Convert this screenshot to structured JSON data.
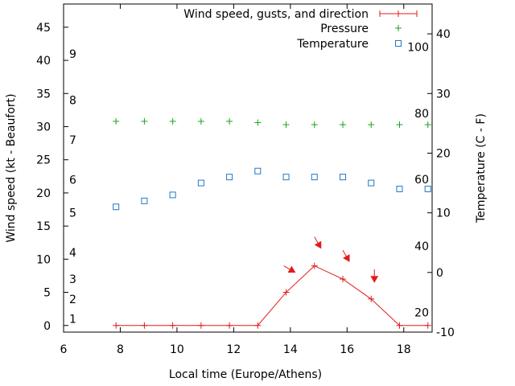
{
  "chart_data": {
    "type": "line",
    "xlabel": "Local time (Europe/Athens)",
    "ylabel_left": "Wind speed (kt - Beaufort)",
    "ylabel_right": "Temperature (C - F)",
    "xlim": [
      6,
      19
    ],
    "ylim_left": [
      -1,
      48.5
    ],
    "ylim_right": [
      -10,
      45
    ],
    "x_ticks": [
      "6",
      "8",
      "10",
      "12",
      "14",
      "16",
      "18"
    ],
    "y_ticks_left": [
      "0",
      "5",
      "10",
      "15",
      "20",
      "25",
      "30",
      "35",
      "40",
      "45"
    ],
    "y_ticks_right": [
      "-10",
      "0",
      "10",
      "20",
      "30",
      "40"
    ],
    "beaufort_labels": [
      {
        "label": "1",
        "kt": 1
      },
      {
        "label": "2",
        "kt": 4
      },
      {
        "label": "3",
        "kt": 7
      },
      {
        "label": "4",
        "kt": 11
      },
      {
        "label": "5",
        "kt": 17
      },
      {
        "label": "6",
        "kt": 22
      },
      {
        "label": "7",
        "kt": 28
      },
      {
        "label": "8",
        "kt": 34
      },
      {
        "label": "9",
        "kt": 41
      }
    ],
    "fahrenheit_labels": [
      {
        "label": "20",
        "c": -6.7
      },
      {
        "label": "40",
        "c": 4.4
      },
      {
        "label": "60",
        "c": 15.6
      },
      {
        "label": "80",
        "c": 26.7
      },
      {
        "label": "100",
        "c": 37.8
      }
    ],
    "legend": [
      "Wind speed, gusts, and direction",
      "Pressure",
      "Temperature"
    ],
    "legend_position": "top-right",
    "colors": {
      "wind": "#e41a1c",
      "pressure": "#1aa31a",
      "temperature": "#1f78c8"
    },
    "series": [
      {
        "name": "Wind speed, gusts, and direction",
        "axis": "left",
        "x": [
          7.85,
          8.85,
          9.85,
          10.85,
          11.85,
          12.85,
          13.85,
          14.85,
          15.85,
          16.85,
          17.85,
          18.85
        ],
        "values": [
          0,
          0,
          0,
          0,
          0,
          0,
          5,
          9,
          7,
          4,
          0,
          0
        ]
      },
      {
        "name": "Pressure",
        "axis": "left",
        "x": [
          7.85,
          8.85,
          9.85,
          10.85,
          11.85,
          12.85,
          13.85,
          14.85,
          15.85,
          16.85,
          17.85,
          18.85
        ],
        "values": [
          30.8,
          30.8,
          30.8,
          30.8,
          30.8,
          30.6,
          30.3,
          30.3,
          30.3,
          30.3,
          30.3,
          30.3
        ]
      },
      {
        "name": "Temperature",
        "axis": "right",
        "x": [
          7.85,
          8.85,
          9.85,
          10.85,
          11.85,
          12.85,
          13.85,
          14.85,
          15.85,
          16.85,
          17.85,
          18.85
        ],
        "values": [
          11,
          12,
          13,
          15,
          16,
          17,
          16,
          16,
          16,
          15,
          14,
          14
        ]
      }
    ],
    "wind_direction_arrows": [
      {
        "x": 13.85,
        "value": 5,
        "direction_deg": 300
      },
      {
        "x": 14.85,
        "value": 9,
        "direction_deg": 330
      },
      {
        "x": 15.85,
        "value": 7,
        "direction_deg": 330
      },
      {
        "x": 16.85,
        "value": 4,
        "direction_deg": 0
      }
    ]
  }
}
